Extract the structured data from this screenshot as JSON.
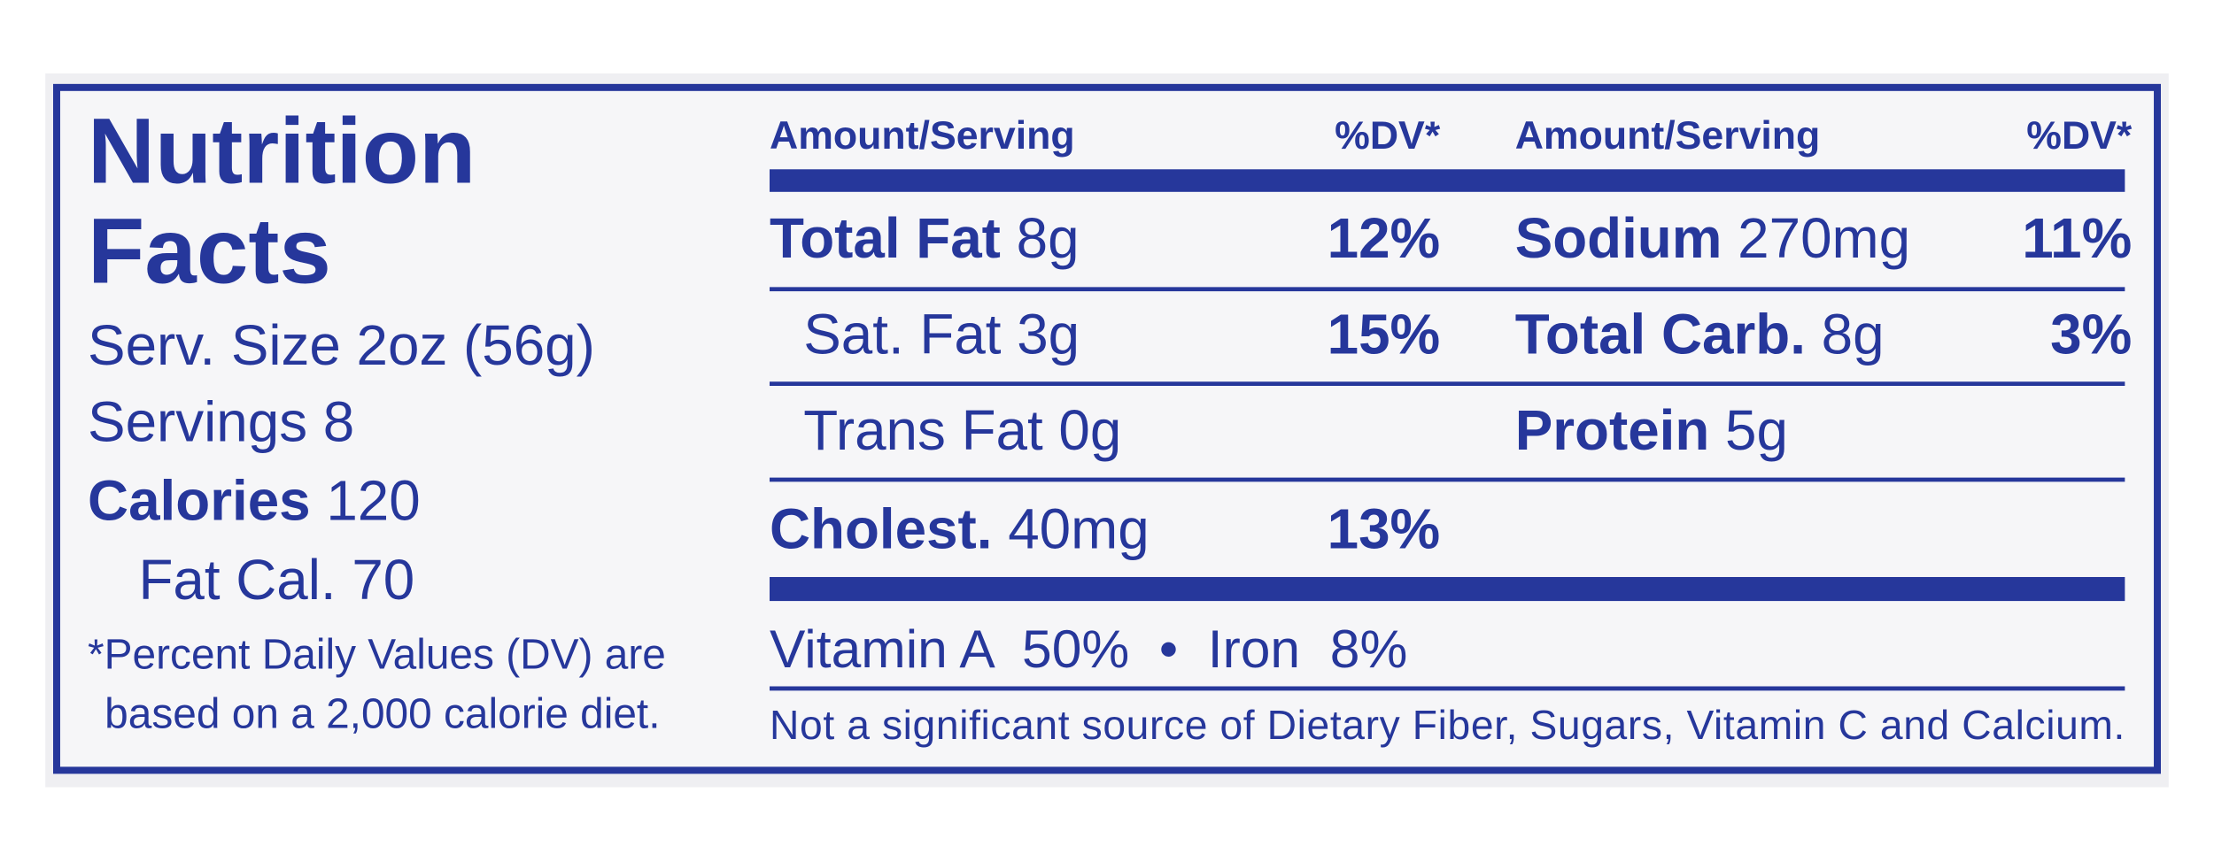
{
  "title_lines": [
    "Nutrition",
    "Facts"
  ],
  "serving_size": "Serv. Size 2oz (56g)",
  "servings": "Servings 8",
  "calories": {
    "label": "Calories",
    "value": "120"
  },
  "fat_calories": "Fat Cal. 70",
  "footnote_lines": [
    "*Percent Daily Values (DV) are",
    "based on a 2,000 calorie diet."
  ],
  "columns": [
    {
      "header_amount": "Amount/Serving",
      "header_dv": "%DV*",
      "rows": [
        {
          "label": "Total Fat",
          "amount": "8g",
          "dv": "12%"
        },
        {
          "label": "Sat. Fat",
          "amount": "3g",
          "dv": "15%",
          "indent": true
        },
        {
          "label": "Trans Fat",
          "amount": "0g",
          "indent": true
        },
        {
          "label": "Cholest.",
          "amount": "40mg",
          "dv": "13%"
        }
      ]
    },
    {
      "header_amount": "Amount/Serving",
      "header_dv": "%DV*",
      "rows": [
        {
          "label": "Sodium",
          "amount": "270mg",
          "dv": "11%"
        },
        {
          "label": "Total Carb.",
          "amount": "8g",
          "dv": "3%"
        },
        {
          "label": "Protein",
          "amount": "5g"
        }
      ]
    }
  ],
  "vitamins": "Vitamin A  50%  •  Iron  8%",
  "note": "Not a significant source of Dietary Fiber, Sugars, Vitamin C and Calcium."
}
